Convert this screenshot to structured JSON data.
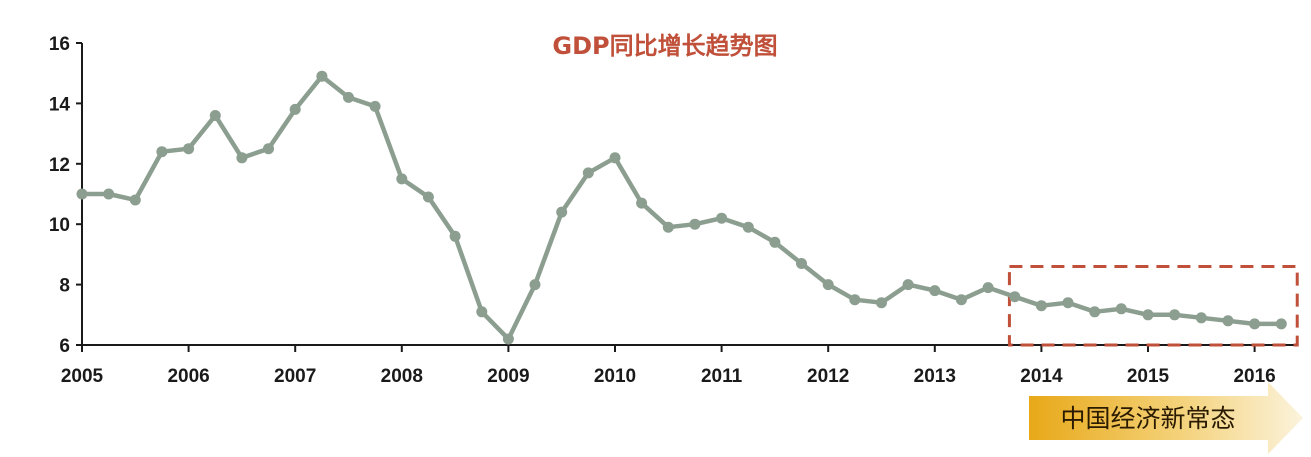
{
  "chart_data": {
    "type": "line",
    "title": "GDP同比增长趋势图",
    "xlabel": "",
    "ylabel": "",
    "ylim": [
      6,
      16
    ],
    "yticks": [
      6,
      8,
      10,
      12,
      14,
      16
    ],
    "xlim": [
      2005,
      2016.4
    ],
    "xticks": [
      "2005",
      "2006",
      "2007",
      "2008",
      "2009",
      "2010",
      "2011",
      "2012",
      "2013",
      "2014",
      "2015",
      "2016"
    ],
    "grid": false,
    "series": [
      {
        "x": [
          2005.0,
          2005.25,
          2005.5,
          2005.75,
          2006.0,
          2006.25,
          2006.5,
          2006.75,
          2007.0,
          2007.25,
          2007.5,
          2007.75,
          2008.0,
          2008.25,
          2008.5,
          2008.75,
          2009.0,
          2009.25,
          2009.5,
          2009.75,
          2010.0,
          2010.25,
          2010.5,
          2010.75,
          2011.0,
          2011.25,
          2011.5,
          2011.75,
          2012.0,
          2012.25,
          2012.5,
          2012.75,
          2013.0,
          2013.25,
          2013.5,
          2013.75,
          2014.0,
          2014.25,
          2014.5,
          2014.75,
          2015.0,
          2015.25,
          2015.5,
          2015.75,
          2016.0,
          2016.25
        ],
        "values": [
          11.0,
          11.0,
          10.8,
          12.4,
          12.5,
          13.6,
          12.2,
          12.5,
          13.8,
          14.9,
          14.2,
          13.9,
          11.5,
          10.9,
          9.6,
          7.1,
          6.2,
          8.0,
          10.4,
          11.7,
          12.2,
          10.7,
          9.9,
          10.0,
          10.2,
          9.9,
          9.4,
          8.7,
          8.0,
          7.5,
          7.4,
          8.0,
          7.8,
          7.5,
          7.9,
          7.6,
          7.3,
          7.4,
          7.1,
          7.2,
          7.0,
          7.0,
          6.9,
          6.8,
          6.7,
          6.7
        ],
        "color": "#8c9e90"
      }
    ],
    "annotations": [
      {
        "type": "dashed-box",
        "x_from": 2013.7,
        "x_to": 2016.4,
        "y_from": 6.0,
        "y_to": 8.6,
        "color": "#c0503a"
      },
      {
        "type": "arrow-banner",
        "text": "中国经济新常态"
      }
    ]
  },
  "colors": {
    "title": "#c0503a",
    "line": "#8c9e90",
    "axis": "#1a1a1a",
    "dashed_box": "#c0503a",
    "banner_start": "#e8a818",
    "banner_end": "#fbf3dc"
  }
}
